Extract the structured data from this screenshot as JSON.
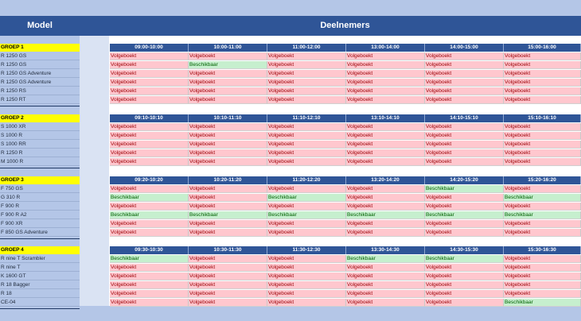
{
  "header": {
    "model": "Model",
    "deelnemers": "Deelnemers"
  },
  "colors": {
    "header_blue": "#2f5597",
    "booked_bg": "#ffc7ce",
    "booked_text": "#9c0006",
    "free_bg": "#c6efce",
    "free_text": "#006100",
    "group_yellow": "#ffff00"
  },
  "status_labels": {
    "booked": "Volgeboekt",
    "free": "Beschikbaar"
  },
  "groups": [
    {
      "label": "GROEP 1",
      "slots": [
        "09:00-10:00",
        "10:00-11:00",
        "11:00-12:00",
        "13:00-14:00",
        "14:00-15:00",
        "15:00-16:00"
      ],
      "rows": [
        {
          "model": "R 1250 GS",
          "cells": [
            "Volgeboekt",
            "Volgeboekt",
            "Volgeboekt",
            "Volgeboekt",
            "Volgeboekt",
            "Volgeboekt"
          ]
        },
        {
          "model": "R 1250 GS",
          "cells": [
            "Volgeboekt",
            "Beschikbaar",
            "Volgeboekt",
            "Volgeboekt",
            "Volgeboekt",
            "Volgeboekt"
          ]
        },
        {
          "model": "R 1250 GS Adventure",
          "cells": [
            "Volgeboekt",
            "Volgeboekt",
            "Volgeboekt",
            "Volgeboekt",
            "Volgeboekt",
            "Volgeboekt"
          ]
        },
        {
          "model": "R 1250 GS Adventure",
          "cells": [
            "Volgeboekt",
            "Volgeboekt",
            "Volgeboekt",
            "Volgeboekt",
            "Volgeboekt",
            "Volgeboekt"
          ]
        },
        {
          "model": "R 1250 RS",
          "cells": [
            "Volgeboekt",
            "Volgeboekt",
            "Volgeboekt",
            "Volgeboekt",
            "Volgeboekt",
            "Volgeboekt"
          ]
        },
        {
          "model": "R 1250 RT",
          "cells": [
            "Volgeboekt",
            "Volgeboekt",
            "Volgeboekt",
            "Volgeboekt",
            "Volgeboekt",
            "Volgeboekt"
          ]
        }
      ]
    },
    {
      "label": "GROEP 2",
      "slots": [
        "09:10-10:10",
        "10:10-11:10",
        "11:10-12:10",
        "13:10-14:10",
        "14:10-15:10",
        "15:10-16:10"
      ],
      "rows": [
        {
          "model": "S 1000 XR",
          "cells": [
            "Volgeboekt",
            "Volgeboekt",
            "Volgeboekt",
            "Volgeboekt",
            "Volgeboekt",
            "Volgeboekt"
          ]
        },
        {
          "model": "S 1000 R",
          "cells": [
            "Volgeboekt",
            "Volgeboekt",
            "Volgeboekt",
            "Volgeboekt",
            "Volgeboekt",
            "Volgeboekt"
          ]
        },
        {
          "model": "S 1000 RR",
          "cells": [
            "Volgeboekt",
            "Volgeboekt",
            "Volgeboekt",
            "Volgeboekt",
            "Volgeboekt",
            "Volgeboekt"
          ]
        },
        {
          "model": "R 1250 R",
          "cells": [
            "Volgeboekt",
            "Volgeboekt",
            "Volgeboekt",
            "Volgeboekt",
            "Volgeboekt",
            "Volgeboekt"
          ]
        },
        {
          "model": "M 1000 R",
          "cells": [
            "Volgeboekt",
            "Volgeboekt",
            "Volgeboekt",
            "Volgeboekt",
            "Volgeboekt",
            "Volgeboekt"
          ]
        }
      ]
    },
    {
      "label": "GROEP 3",
      "slots": [
        "09:20-10:20",
        "10:20-11:20",
        "11:20-12:20",
        "13:20-14:20",
        "14:20-15:20",
        "15:20-16:20"
      ],
      "rows": [
        {
          "model": "F 750 GS",
          "cells": [
            "Volgeboekt",
            "Volgeboekt",
            "Volgeboekt",
            "Volgeboekt",
            "Beschikbaar",
            "Volgeboekt"
          ]
        },
        {
          "model": "G 310 R",
          "cells": [
            "Beschikbaar",
            "Volgeboekt",
            "Beschikbaar",
            "Volgeboekt",
            "Volgeboekt",
            "Beschikbaar"
          ]
        },
        {
          "model": "F 900 R",
          "cells": [
            "Volgeboekt",
            "Volgeboekt",
            "Volgeboekt",
            "Volgeboekt",
            "Volgeboekt",
            "Volgeboekt"
          ]
        },
        {
          "model": "F 900 R A2",
          "cells": [
            "Beschikbaar",
            "Beschikbaar",
            "Beschikbaar",
            "Beschikbaar",
            "Beschikbaar",
            "Beschikbaar"
          ]
        },
        {
          "model": "F 900 XR",
          "cells": [
            "Volgeboekt",
            "Volgeboekt",
            "Volgeboekt",
            "Volgeboekt",
            "Volgeboekt",
            "Volgeboekt"
          ]
        },
        {
          "model": "F 850 GS Adventure",
          "cells": [
            "Volgeboekt",
            "Volgeboekt",
            "Volgeboekt",
            "Volgeboekt",
            "Volgeboekt",
            "Volgeboekt"
          ]
        }
      ]
    },
    {
      "label": "GROEP 4",
      "slots": [
        "09:30-10:30",
        "10:30-11:30",
        "11:30-12:30",
        "13:30-14:30",
        "14:30-15:30",
        "15:30-16:30"
      ],
      "rows": [
        {
          "model": "R nine T Scrambler",
          "cells": [
            "Beschikbaar",
            "Volgeboekt",
            "Volgeboekt",
            "Beschikbaar",
            "Beschikbaar",
            "Volgeboekt"
          ]
        },
        {
          "model": "R nine T",
          "cells": [
            "Volgeboekt",
            "Volgeboekt",
            "Volgeboekt",
            "Volgeboekt",
            "Volgeboekt",
            "Volgeboekt"
          ]
        },
        {
          "model": "K 1600 GT",
          "cells": [
            "Volgeboekt",
            "Volgeboekt",
            "Volgeboekt",
            "Volgeboekt",
            "Volgeboekt",
            "Volgeboekt"
          ]
        },
        {
          "model": "R 18 Bagger",
          "cells": [
            "Volgeboekt",
            "Volgeboekt",
            "Volgeboekt",
            "Volgeboekt",
            "Volgeboekt",
            "Volgeboekt"
          ]
        },
        {
          "model": "R 18",
          "cells": [
            "Volgeboekt",
            "Volgeboekt",
            "Volgeboekt",
            "Volgeboekt",
            "Volgeboekt",
            "Volgeboekt"
          ]
        },
        {
          "model": "CE-04",
          "cells": [
            "Volgeboekt",
            "Volgeboekt",
            "Volgeboekt",
            "Volgeboekt",
            "Volgeboekt",
            "Beschikbaar"
          ]
        }
      ]
    }
  ]
}
